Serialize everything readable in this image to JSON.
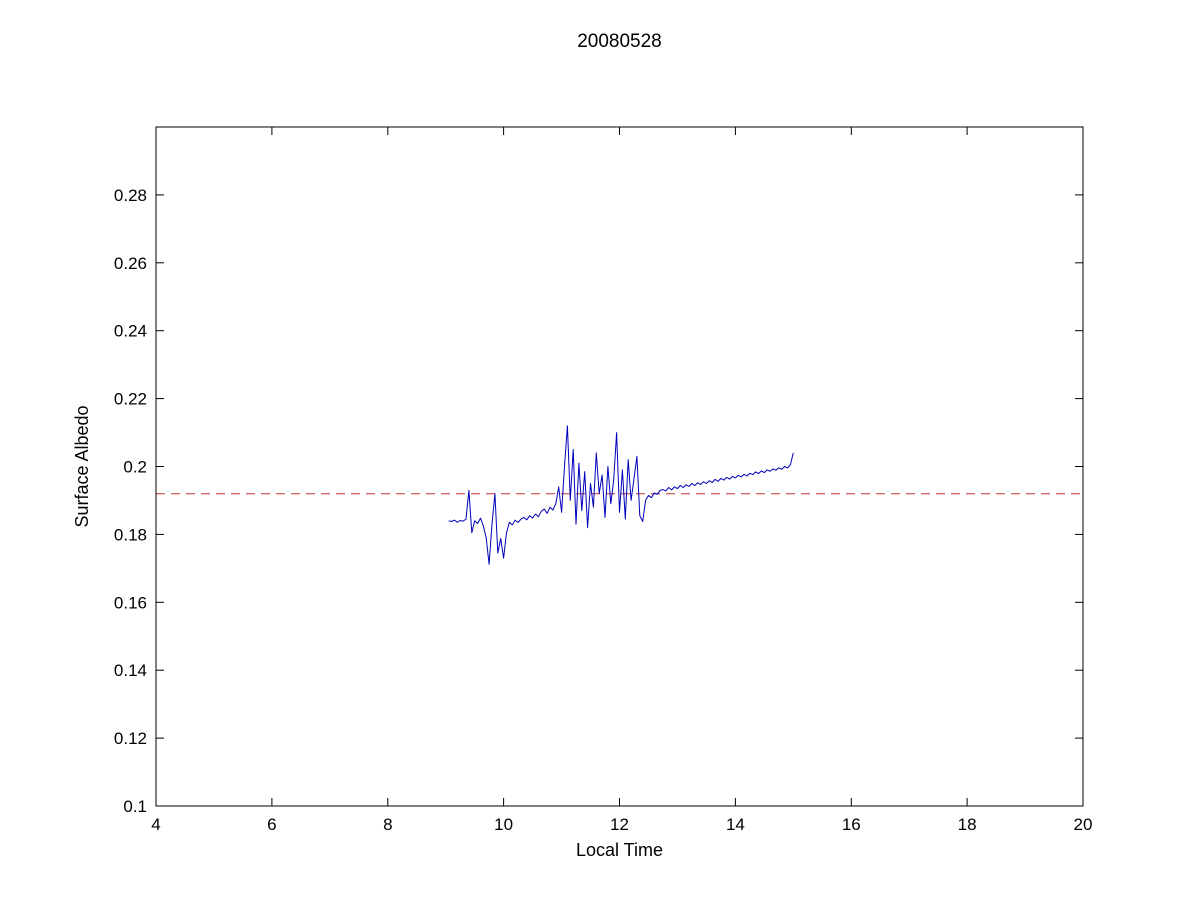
{
  "figure": {
    "background": "#ffffff",
    "axis_color": "#000000"
  },
  "chart_data": {
    "type": "line",
    "title": "20080528",
    "xlabel": "Local Time",
    "ylabel": "Surface Albedo",
    "xlim": [
      4,
      20
    ],
    "ylim": [
      0.1,
      0.3
    ],
    "xticks": [
      4,
      6,
      8,
      10,
      12,
      14,
      16,
      18,
      20
    ],
    "yticks": [
      0.1,
      0.12,
      0.14,
      0.16,
      0.18,
      0.2,
      0.22,
      0.24,
      0.26,
      0.28
    ],
    "grid": false,
    "legend_position": "none",
    "series": [
      {
        "name": "mean-reference-line",
        "type": "hline",
        "y_const": 0.192,
        "color": "#c03030",
        "style": "dashed"
      },
      {
        "name": "surface-albedo-line",
        "type": "line",
        "color": "#0000bb",
        "style": "solid",
        "x_start": 9.05,
        "x_step": 0.05,
        "y": [
          0.184,
          0.1838,
          0.1842,
          0.1836,
          0.1841,
          0.1839,
          0.1845,
          0.193,
          0.1805,
          0.184,
          0.1832,
          0.1848,
          0.1825,
          0.179,
          0.1712,
          0.183,
          0.192,
          0.1745,
          0.1788,
          0.173,
          0.1805,
          0.1836,
          0.1828,
          0.1842,
          0.1835,
          0.1845,
          0.185,
          0.1843,
          0.1855,
          0.1848,
          0.186,
          0.1852,
          0.1868,
          0.1875,
          0.1862,
          0.188,
          0.1872,
          0.189,
          0.194,
          0.1865,
          0.2,
          0.212,
          0.19,
          0.205,
          0.183,
          0.201,
          0.187,
          0.1985,
          0.182,
          0.195,
          0.188,
          0.204,
          0.192,
          0.1975,
          0.185,
          0.2,
          0.189,
          0.196,
          0.21,
          0.1865,
          0.199,
          0.1845,
          0.202,
          0.19,
          0.1965,
          0.203,
          0.1855,
          0.1838,
          0.19,
          0.1915,
          0.1908,
          0.1922,
          0.1918,
          0.193,
          0.1932,
          0.1928,
          0.1938,
          0.1931,
          0.194,
          0.1935,
          0.1944,
          0.1938,
          0.1946,
          0.1941,
          0.195,
          0.1944,
          0.1952,
          0.1947,
          0.1955,
          0.195,
          0.1958,
          0.1953,
          0.1962,
          0.1956,
          0.1965,
          0.196,
          0.1968,
          0.1963,
          0.1971,
          0.1966,
          0.1974,
          0.1969,
          0.1977,
          0.1972,
          0.198,
          0.1976,
          0.1984,
          0.1979,
          0.1987,
          0.1982,
          0.199,
          0.1986,
          0.1993,
          0.1989,
          0.1996,
          0.1992,
          0.2,
          0.1996,
          0.2005,
          0.204
        ]
      }
    ]
  }
}
